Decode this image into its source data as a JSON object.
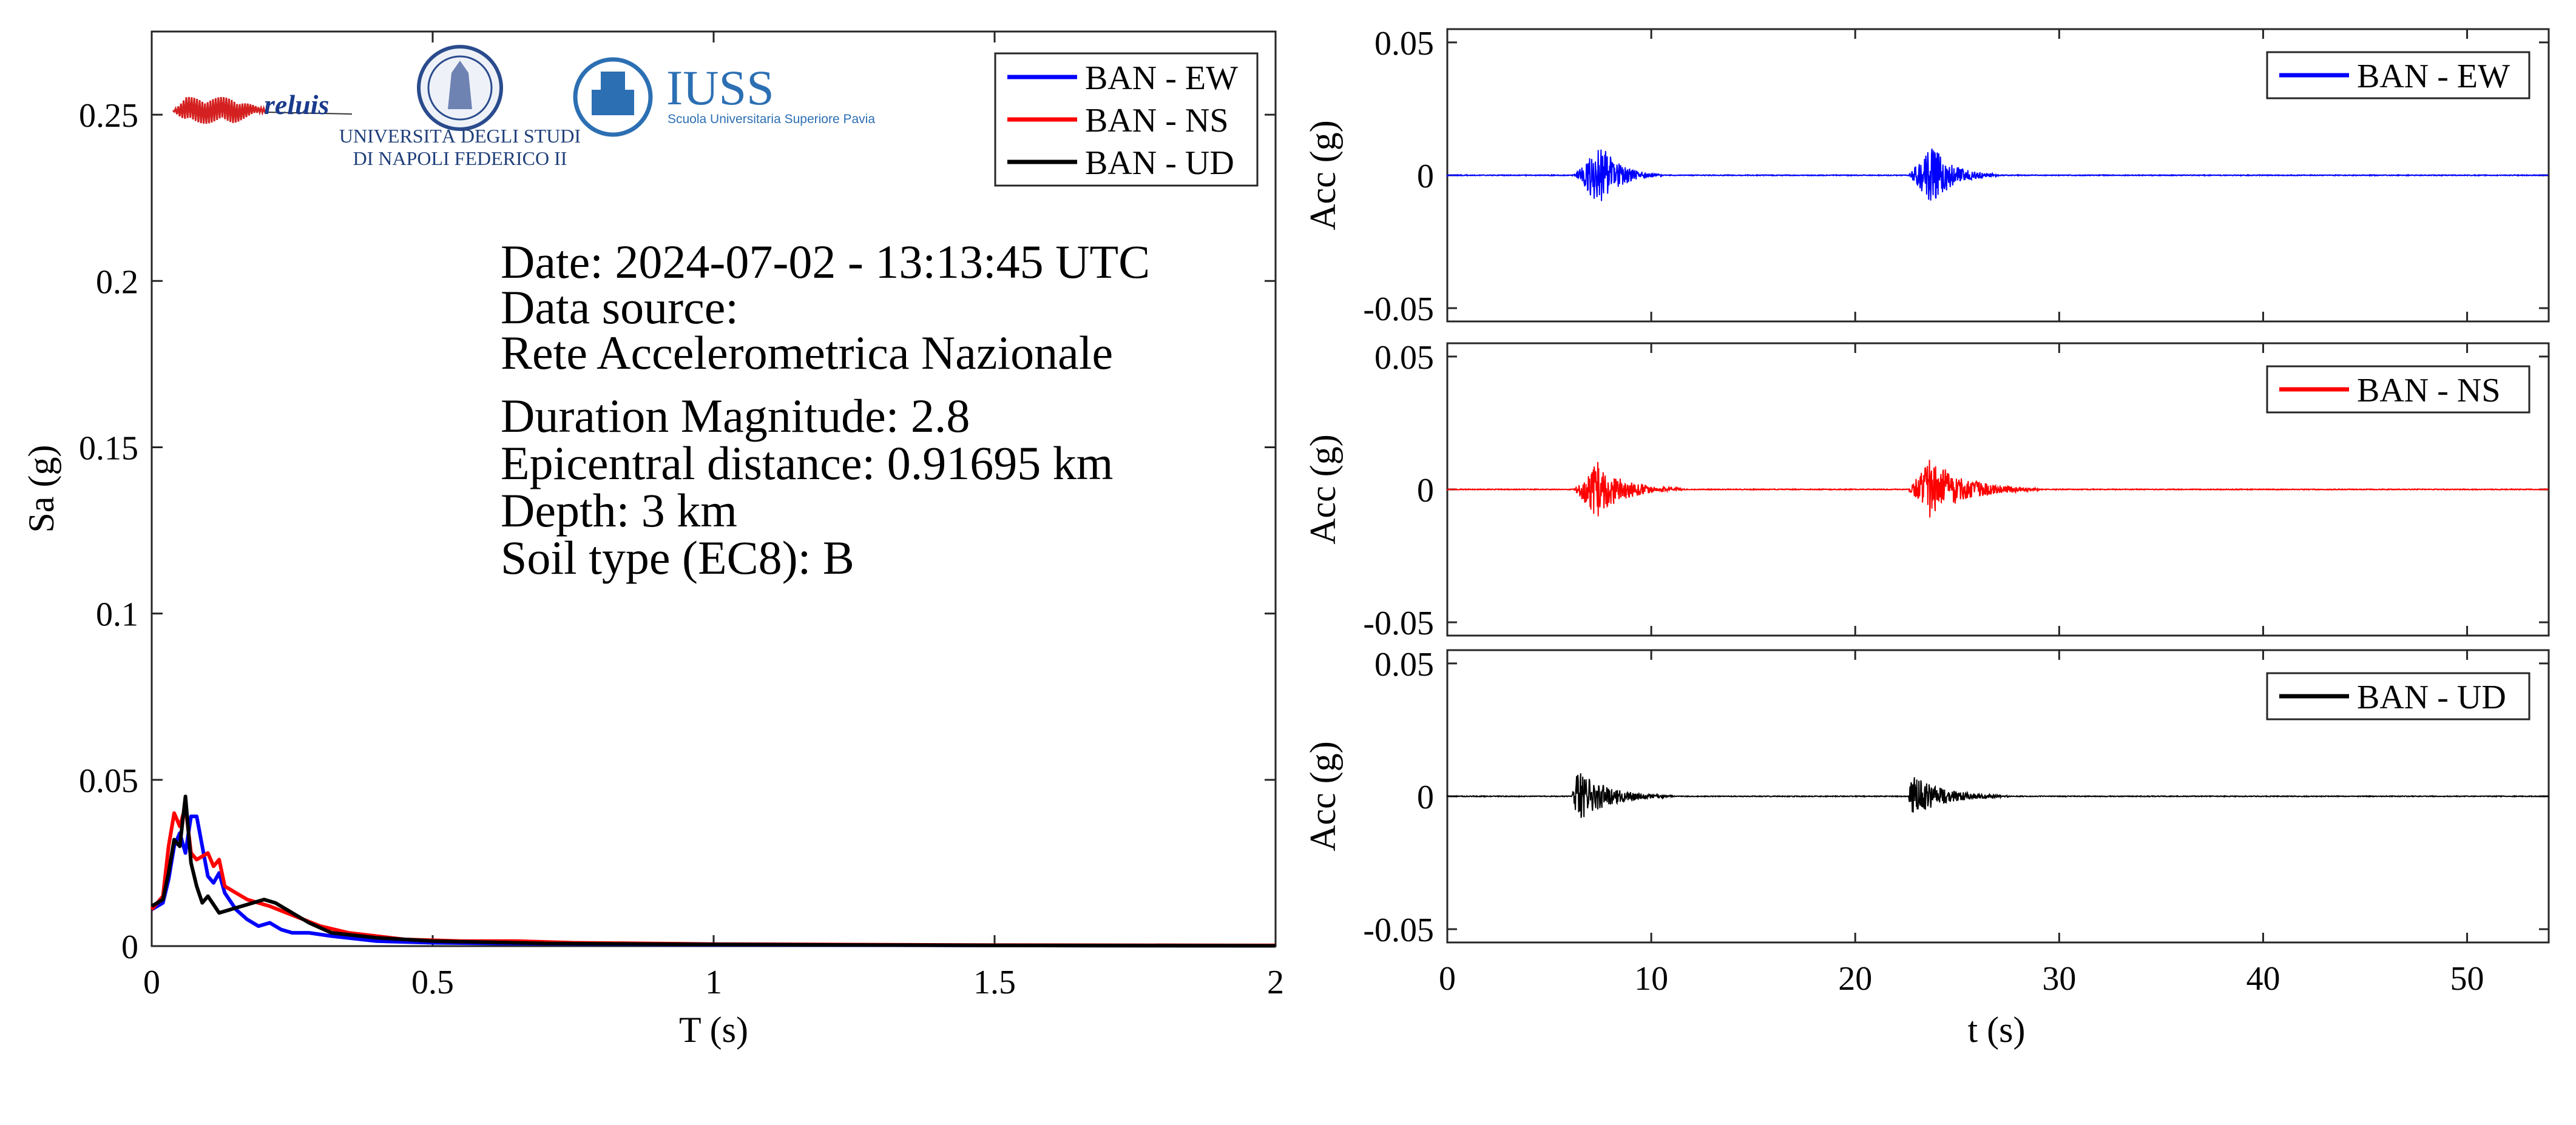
{
  "info": {
    "date": "Date: 2024-07-02 - 13:13:45 UTC",
    "source_label": "Data source:",
    "source_value": "Rete Accelerometrica Nazionale",
    "magnitude": "Duration Magnitude: 2.8",
    "distance": "Epicentral distance: 0.91695 km",
    "depth": "Depth: 3 km",
    "soil": "Soil type (EC8): B"
  },
  "logos": {
    "reluis": "reluis",
    "unina_line1": "UNIVERSITÀ DEGLI STUDI",
    "unina_line2": "DI NAPOLI FEDERICO II",
    "iuss_title": "IUSS",
    "iuss_sub": "Scuola Universitaria Superiore Pavia"
  },
  "colors": {
    "ew": "#0000ff",
    "ns": "#ff0000",
    "ud": "#000000"
  },
  "chart_data": [
    {
      "type": "line",
      "xlabel": "T (s)",
      "ylabel": "Sa (g)",
      "xlim": [
        0,
        2
      ],
      "ylim": [
        0,
        0.275
      ],
      "xticks": [
        0,
        0.5,
        1,
        1.5,
        2
      ],
      "xtick_labels": [
        "0",
        "0.5",
        "1",
        "1.5",
        "2"
      ],
      "yticks": [
        0,
        0.05,
        0.1,
        0.15,
        0.2,
        0.25
      ],
      "ytick_labels": [
        "0",
        "0.05",
        "0.1",
        "0.15",
        "0.2",
        "0.25"
      ],
      "legend": "top-right",
      "series": [
        {
          "name": "BAN - EW",
          "color": "#0000ff",
          "x": [
            0,
            0.02,
            0.03,
            0.04,
            0.05,
            0.06,
            0.07,
            0.08,
            0.09,
            0.1,
            0.11,
            0.12,
            0.13,
            0.15,
            0.17,
            0.19,
            0.21,
            0.23,
            0.25,
            0.28,
            0.32,
            0.4,
            0.5,
            0.7,
            1.0,
            1.5,
            2.0
          ],
          "y": [
            0.011,
            0.013,
            0.02,
            0.03,
            0.034,
            0.028,
            0.039,
            0.039,
            0.03,
            0.021,
            0.019,
            0.022,
            0.016,
            0.011,
            0.008,
            0.006,
            0.007,
            0.005,
            0.004,
            0.004,
            0.003,
            0.0015,
            0.001,
            0.0007,
            0.0004,
            0.0002,
            0.0001
          ]
        },
        {
          "name": "BAN - NS",
          "color": "#ff0000",
          "x": [
            0,
            0.02,
            0.03,
            0.04,
            0.05,
            0.06,
            0.07,
            0.08,
            0.1,
            0.11,
            0.12,
            0.13,
            0.15,
            0.17,
            0.19,
            0.21,
            0.24,
            0.27,
            0.3,
            0.35,
            0.45,
            0.55,
            0.65,
            0.75,
            1.0,
            1.5,
            2.0
          ],
          "y": [
            0.011,
            0.015,
            0.03,
            0.04,
            0.036,
            0.042,
            0.028,
            0.026,
            0.028,
            0.024,
            0.026,
            0.018,
            0.016,
            0.014,
            0.013,
            0.012,
            0.01,
            0.008,
            0.006,
            0.004,
            0.002,
            0.0015,
            0.0015,
            0.001,
            0.0006,
            0.0003,
            0.0002
          ]
        },
        {
          "name": "BAN - UD",
          "color": "#000000",
          "x": [
            0,
            0.02,
            0.03,
            0.04,
            0.05,
            0.06,
            0.07,
            0.08,
            0.09,
            0.1,
            0.12,
            0.14,
            0.16,
            0.18,
            0.2,
            0.22,
            0.25,
            0.28,
            0.32,
            0.4,
            0.5,
            0.7,
            1.0,
            1.5,
            2.0
          ],
          "y": [
            0.012,
            0.014,
            0.022,
            0.032,
            0.03,
            0.045,
            0.025,
            0.018,
            0.013,
            0.015,
            0.01,
            0.011,
            0.012,
            0.013,
            0.014,
            0.013,
            0.01,
            0.007,
            0.004,
            0.0025,
            0.0015,
            0.0008,
            0.0005,
            0.0002,
            0.0001
          ]
        }
      ]
    },
    {
      "type": "line",
      "xlabel": "",
      "ylabel": "Acc (g)",
      "xlim": [
        0,
        54
      ],
      "ylim": [
        -0.055,
        0.055
      ],
      "yticks": [
        -0.05,
        0,
        0.05
      ],
      "ytick_labels": [
        "-0.05",
        "0",
        "0.05"
      ],
      "legend": "top-right",
      "series": [
        {
          "name": "BAN - EW",
          "color": "#0000ff",
          "bursts": [
            {
              "start": 6.2,
              "peak_time": 7.5,
              "end": 10.5,
              "peak": 0.012
            },
            {
              "start": 22.6,
              "peak_time": 23.8,
              "end": 27.0,
              "peak": 0.011
            }
          ]
        }
      ]
    },
    {
      "type": "line",
      "xlabel": "",
      "ylabel": "Acc (g)",
      "xlim": [
        0,
        54
      ],
      "ylim": [
        -0.055,
        0.055
      ],
      "yticks": [
        -0.05,
        0,
        0.05
      ],
      "ytick_labels": [
        "-0.05",
        "0",
        "0.05"
      ],
      "legend": "top-right",
      "series": [
        {
          "name": "BAN - NS",
          "color": "#ff0000",
          "bursts": [
            {
              "start": 6.2,
              "peak_time": 7.3,
              "end": 11.5,
              "peak": 0.011
            },
            {
              "start": 22.6,
              "peak_time": 23.7,
              "end": 29.0,
              "peak": 0.012
            }
          ]
        }
      ]
    },
    {
      "type": "line",
      "xlabel": "t (s)",
      "ylabel": "Acc (g)",
      "xlim": [
        0,
        54
      ],
      "ylim": [
        -0.055,
        0.055
      ],
      "xticks": [
        0,
        10,
        20,
        30,
        40,
        50
      ],
      "xtick_labels": [
        "0",
        "10",
        "20",
        "30",
        "40",
        "50"
      ],
      "yticks": [
        -0.05,
        0,
        0.05
      ],
      "ytick_labels": [
        "-0.05",
        "0",
        "0.05"
      ],
      "legend": "top-right",
      "series": [
        {
          "name": "BAN - UD",
          "color": "#000000",
          "bursts": [
            {
              "start": 6.1,
              "peak_time": 6.4,
              "end": 11.0,
              "peak": 0.01
            },
            {
              "start": 22.6,
              "peak_time": 22.8,
              "end": 27.5,
              "peak": 0.008
            }
          ]
        }
      ]
    }
  ]
}
